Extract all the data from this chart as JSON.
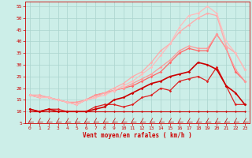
{
  "title": "",
  "xlabel": "Vent moyen/en rafales ( km/h )",
  "ylabel": "",
  "background_color": "#cceee8",
  "grid_color": "#aad4ce",
  "xlim": [
    -0.5,
    23.5
  ],
  "ylim": [
    5,
    57
  ],
  "yticks": [
    5,
    10,
    15,
    20,
    25,
    30,
    35,
    40,
    45,
    50,
    55
  ],
  "xticks": [
    0,
    1,
    2,
    3,
    4,
    5,
    6,
    7,
    8,
    9,
    10,
    11,
    12,
    13,
    14,
    15,
    16,
    17,
    18,
    19,
    20,
    21,
    22,
    23
  ],
  "series": [
    {
      "x": [
        0,
        1,
        2,
        3,
        4,
        5,
        6,
        7,
        8,
        9,
        10,
        11,
        12,
        13,
        14,
        15,
        16,
        17,
        18,
        19,
        20,
        21,
        22,
        23
      ],
      "y": [
        10,
        10,
        10,
        10,
        10,
        10,
        10,
        10,
        10,
        10,
        10,
        10,
        10,
        10,
        10,
        10,
        10,
        10,
        10,
        10,
        10,
        10,
        10,
        10
      ],
      "color": "#cc0000",
      "lw": 0.8,
      "marker": "D",
      "ms": 1.5
    },
    {
      "x": [
        0,
        1,
        2,
        3,
        4,
        5,
        6,
        7,
        8,
        9,
        10,
        11,
        12,
        13,
        14,
        15,
        16,
        17,
        18,
        19,
        20,
        21,
        22,
        23
      ],
      "y": [
        11,
        10,
        11,
        11,
        10,
        10,
        10,
        12,
        13,
        13,
        12,
        13,
        16,
        17,
        20,
        19,
        23,
        24,
        25,
        23,
        29,
        21,
        13,
        13
      ],
      "color": "#dd2222",
      "lw": 0.9,
      "marker": "D",
      "ms": 1.8
    },
    {
      "x": [
        0,
        1,
        2,
        3,
        4,
        5,
        6,
        7,
        8,
        9,
        10,
        11,
        12,
        13,
        14,
        15,
        16,
        17,
        18,
        19,
        20,
        21,
        22,
        23
      ],
      "y": [
        11,
        10,
        11,
        10,
        10,
        10,
        10,
        11,
        12,
        15,
        16,
        18,
        20,
        22,
        23,
        25,
        26,
        27,
        31,
        30,
        28,
        21,
        18,
        13
      ],
      "color": "#cc0000",
      "lw": 1.2,
      "marker": "D",
      "ms": 1.8
    },
    {
      "x": [
        0,
        1,
        2,
        3,
        4,
        5,
        6,
        7,
        8,
        9,
        10,
        11,
        12,
        13,
        14,
        15,
        16,
        17,
        18,
        19,
        20,
        21,
        22,
        23
      ],
      "y": [
        17,
        16,
        16,
        15,
        14,
        13,
        15,
        17,
        18,
        19,
        20,
        21,
        23,
        25,
        27,
        31,
        35,
        37,
        36,
        36,
        43,
        37,
        27,
        23
      ],
      "color": "#ff6666",
      "lw": 0.9,
      "marker": "D",
      "ms": 1.8
    },
    {
      "x": [
        0,
        1,
        2,
        3,
        4,
        5,
        6,
        7,
        8,
        9,
        10,
        11,
        12,
        13,
        14,
        15,
        16,
        17,
        18,
        19,
        20,
        21,
        22,
        23
      ],
      "y": [
        17,
        17,
        16,
        15,
        14,
        14,
        15,
        17,
        18,
        19,
        20,
        22,
        24,
        26,
        29,
        32,
        36,
        38,
        37,
        37,
        43,
        37,
        28,
        23
      ],
      "color": "#ff9999",
      "lw": 0.9,
      "marker": "D",
      "ms": 1.8
    },
    {
      "x": [
        0,
        1,
        2,
        3,
        4,
        5,
        6,
        7,
        8,
        9,
        10,
        11,
        12,
        13,
        14,
        15,
        16,
        17,
        18,
        19,
        20,
        21,
        22,
        23
      ],
      "y": [
        17,
        17,
        16,
        15,
        14,
        13,
        15,
        16,
        18,
        20,
        22,
        25,
        27,
        31,
        36,
        39,
        44,
        47,
        50,
        52,
        51,
        38,
        35,
        28
      ],
      "color": "#ffaaaa",
      "lw": 0.9,
      "marker": "D",
      "ms": 1.8
    },
    {
      "x": [
        0,
        1,
        2,
        3,
        4,
        5,
        6,
        7,
        8,
        9,
        10,
        11,
        12,
        13,
        14,
        15,
        16,
        17,
        18,
        19,
        20,
        21,
        22,
        23
      ],
      "y": [
        17,
        16,
        16,
        15,
        14,
        13,
        15,
        16,
        17,
        19,
        21,
        23,
        26,
        29,
        34,
        39,
        46,
        51,
        52,
        55,
        52,
        40,
        35,
        28
      ],
      "color": "#ffbbbb",
      "lw": 0.9,
      "marker": "D",
      "ms": 1.8
    }
  ],
  "arrow_color": "#cc0000",
  "tick_color": "#cc0000",
  "xlabel_color": "#cc0000",
  "xlabel_fontsize": 5.5,
  "xlabel_fontweight": "bold",
  "tick_fontsize": 4.5
}
